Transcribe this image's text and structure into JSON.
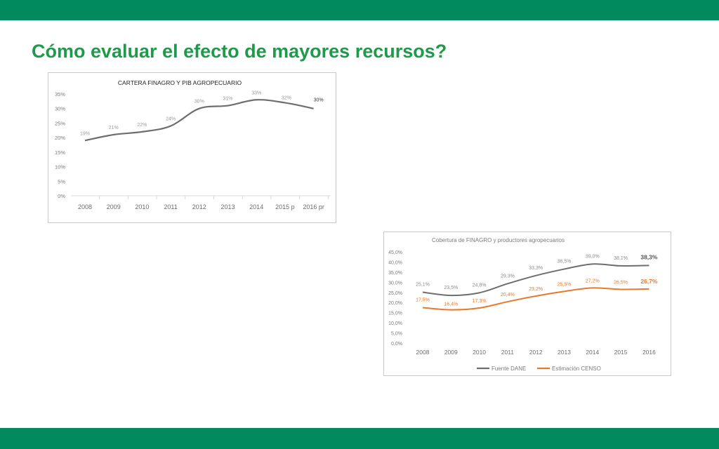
{
  "page": {
    "title": "Cómo evaluar el efecto de mayores recursos?"
  },
  "colors": {
    "band": "#008a5e",
    "title": "#1e9a4a",
    "series_gray": "#6e6e6e",
    "series_orange": "#e8792b"
  },
  "chart_data": [
    {
      "type": "line",
      "title": "CARTERA FINAGRO Y PIB AGROPECUARIO",
      "categories": [
        "2008",
        "2009",
        "2010",
        "2011",
        "2012",
        "2013",
        "2014",
        "2015 p",
        "2016 pr"
      ],
      "y_ticks": [
        "0%",
        "5%",
        "10%",
        "15%",
        "20%",
        "25%",
        "30%",
        "35%"
      ],
      "ylim": [
        0,
        35
      ],
      "grid": false,
      "series": [
        {
          "values": [
            19,
            21,
            22,
            24,
            30,
            31,
            33,
            32,
            30
          ],
          "labels": [
            "19%",
            "21%",
            "22%",
            "24%",
            "30%",
            "31%",
            "33%",
            "32%",
            "30%"
          ]
        }
      ]
    },
    {
      "type": "line",
      "title": "Cobertura de FINAGRO  y productores agropecuarios",
      "categories": [
        "2008",
        "2009",
        "2010",
        "2011",
        "2012",
        "2013",
        "2014",
        "2015",
        "2016"
      ],
      "y_ticks": [
        "0,0%",
        "5,0%",
        "10,0%",
        "15,0%",
        "20,0%",
        "25,0%",
        "30,0%",
        "35,0%",
        "40,0%",
        "45,0%"
      ],
      "ylim": [
        0,
        45
      ],
      "grid": false,
      "legend_position": "bottom",
      "series": [
        {
          "name": "Fuente DANE",
          "values": [
            25.1,
            23.5,
            24.8,
            29.3,
            33.3,
            36.5,
            39.0,
            38.1,
            38.3
          ],
          "labels": [
            "25,1%",
            "23,5%",
            "24,8%",
            "29,3%",
            "33,3%",
            "36,5%",
            "39,0%",
            "38,1%",
            "38,3%"
          ]
        },
        {
          "name": "Estimación CENSO",
          "values": [
            17.5,
            16.4,
            17.3,
            20.4,
            23.2,
            25.5,
            27.2,
            26.5,
            26.7
          ],
          "labels": [
            "17,5%",
            "16,4%",
            "17,3%",
            "20,4%",
            "23,2%",
            "25,5%",
            "27,2%",
            "26,5%",
            "26,7%"
          ]
        }
      ]
    }
  ]
}
